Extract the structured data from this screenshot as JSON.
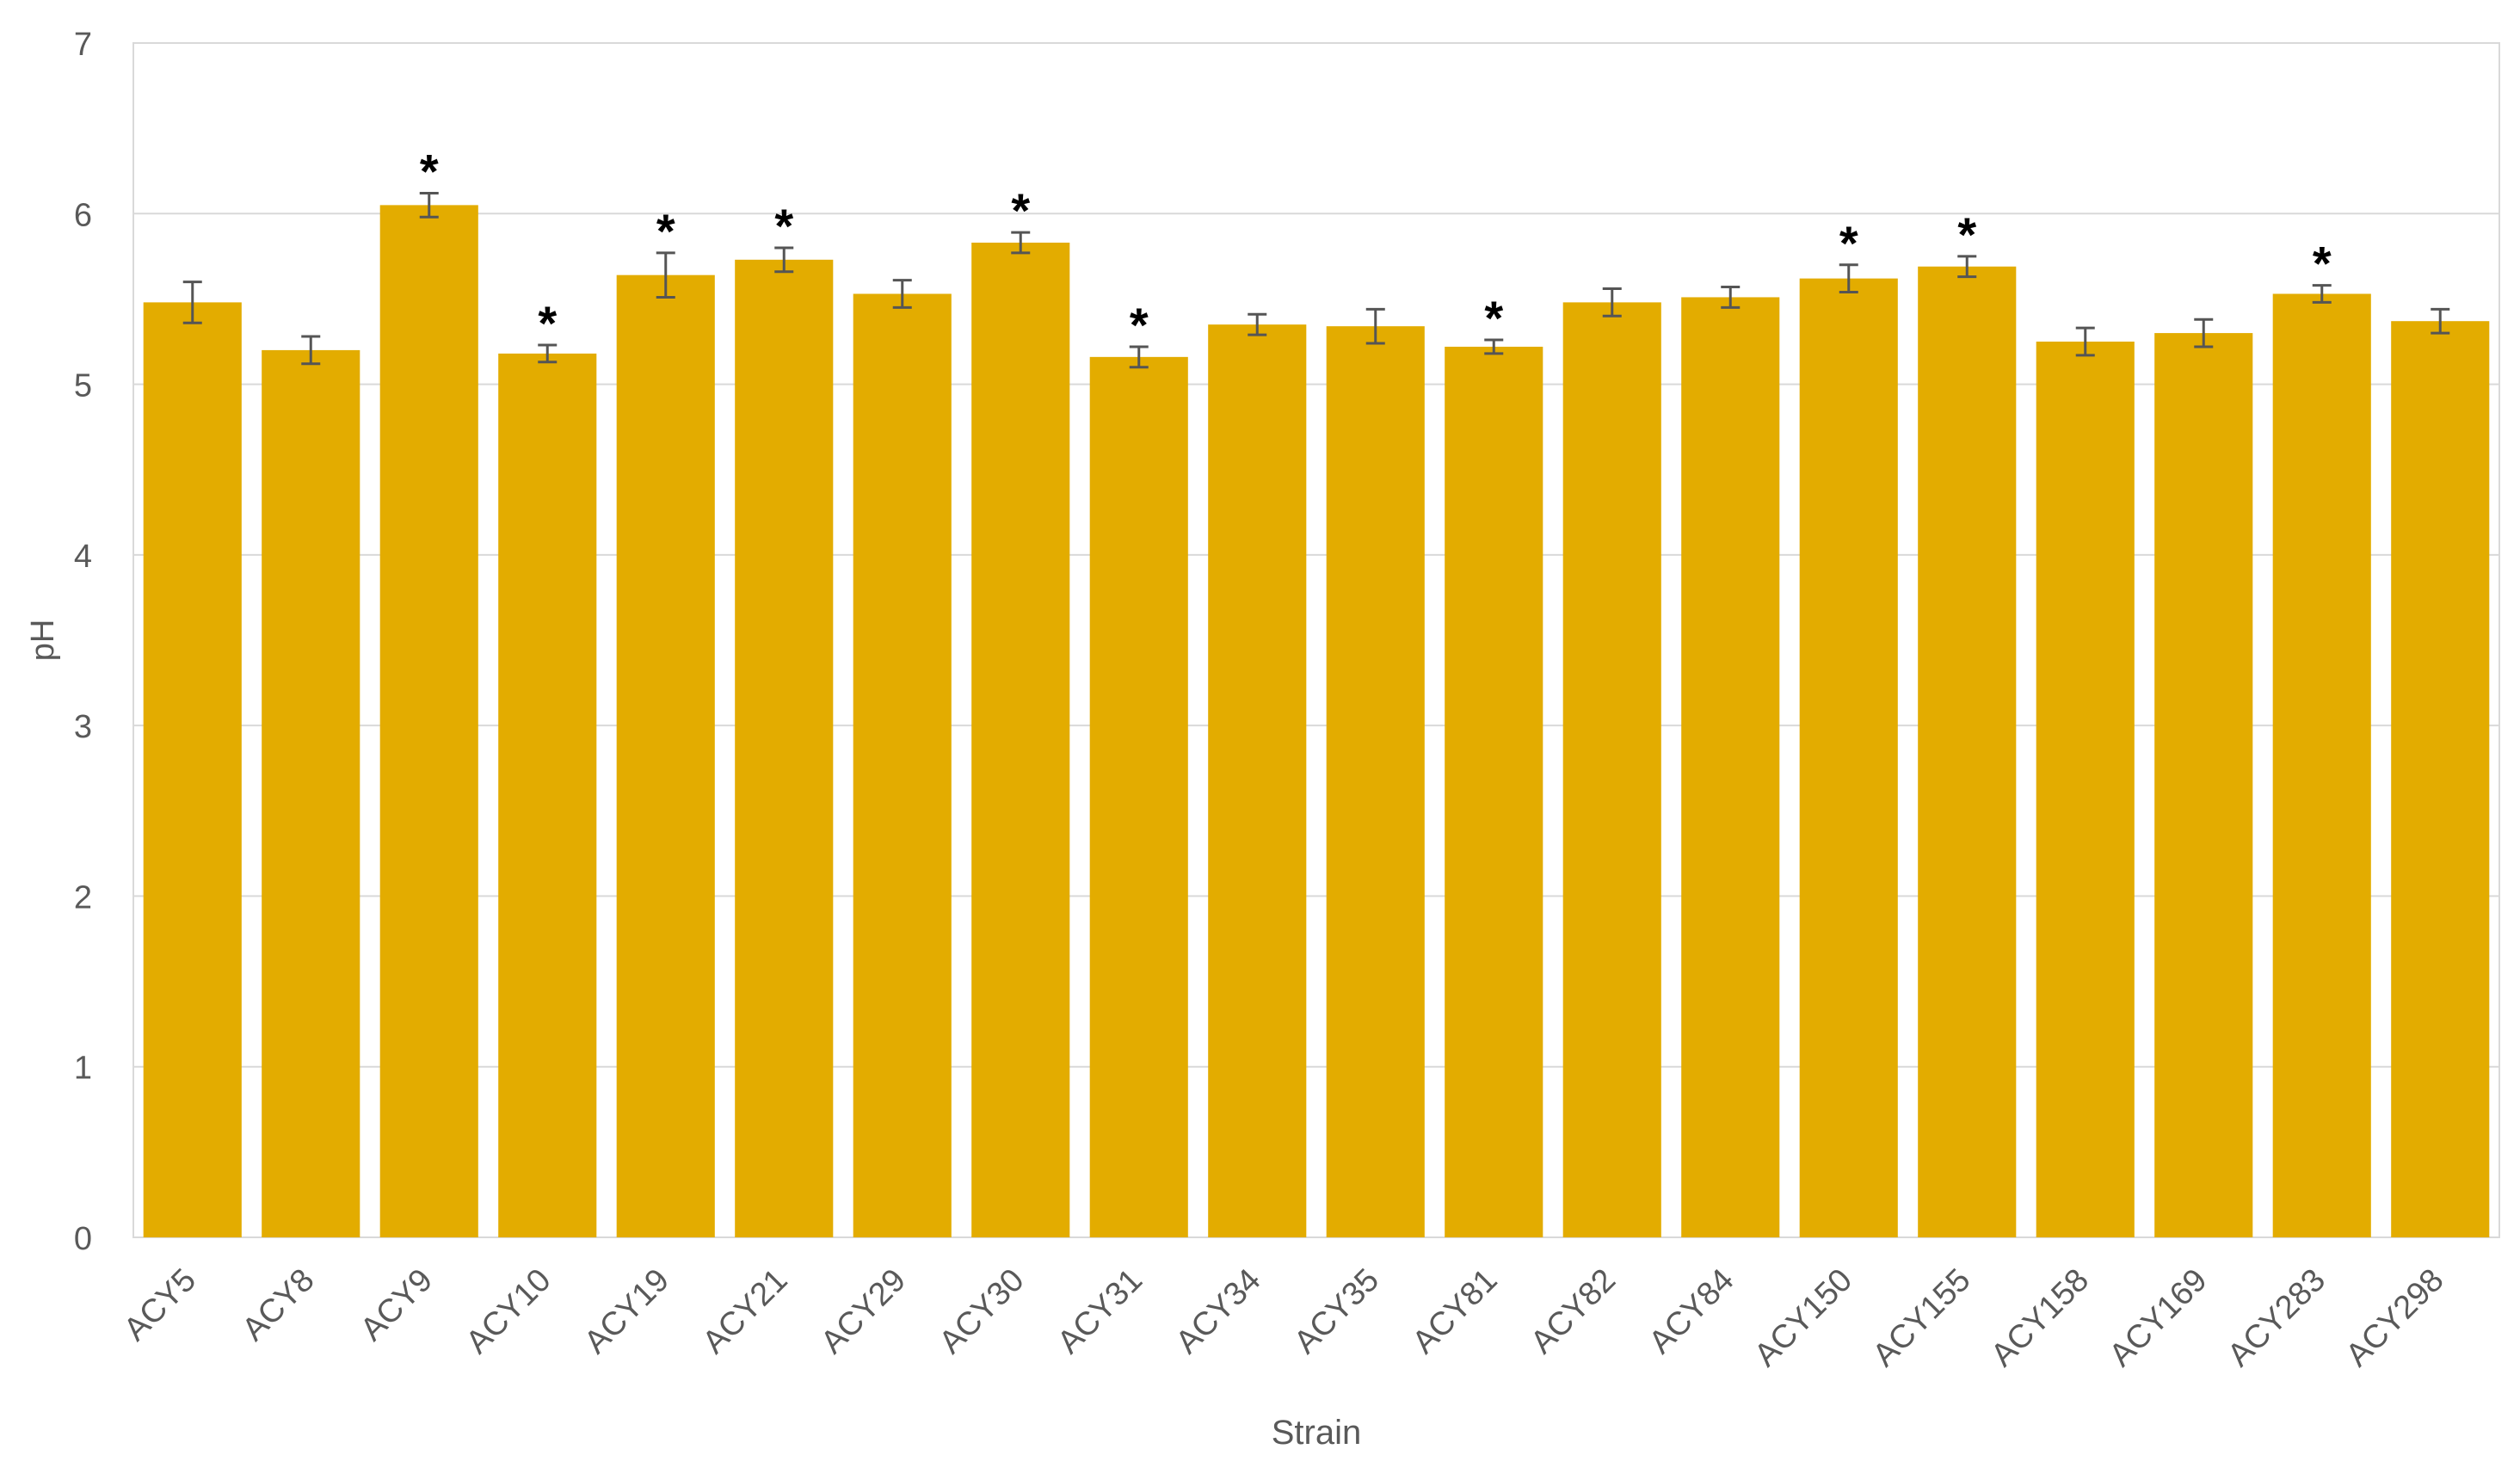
{
  "chart_data": {
    "type": "bar",
    "title": "",
    "xlabel": "Strain",
    "ylabel": "pH",
    "ylim": [
      0,
      7
    ],
    "yticks": [
      0,
      1,
      2,
      3,
      4,
      5,
      6,
      7
    ],
    "grid": "horizontal",
    "bar_color": "#E3AC00",
    "error_bar_color": "#555555",
    "categories": [
      "ACY5",
      "ACY8",
      "ACY9",
      "ACY10",
      "ACY19",
      "ACY21",
      "ACY29",
      "ACY30",
      "ACY31",
      "ACY34",
      "ACY35",
      "ACY81",
      "ACY82",
      "ACY84",
      "ACY150",
      "ACY155",
      "ACY158",
      "ACY169",
      "ACY283",
      "ACY298"
    ],
    "values": [
      5.48,
      5.2,
      6.05,
      5.18,
      5.64,
      5.73,
      5.53,
      5.83,
      5.16,
      5.35,
      5.34,
      5.22,
      5.48,
      5.51,
      5.62,
      5.69,
      5.25,
      5.3,
      5.53,
      5.37
    ],
    "errors": [
      0.12,
      0.08,
      0.07,
      0.05,
      0.13,
      0.07,
      0.08,
      0.06,
      0.06,
      0.06,
      0.1,
      0.04,
      0.08,
      0.06,
      0.08,
      0.06,
      0.08,
      0.08,
      0.05,
      0.07
    ],
    "significance": [
      "",
      "",
      "*",
      "*",
      "*",
      "*",
      "",
      "*",
      "*",
      "",
      "",
      "*",
      "",
      "",
      "*",
      "*",
      "",
      "",
      "*",
      ""
    ]
  }
}
